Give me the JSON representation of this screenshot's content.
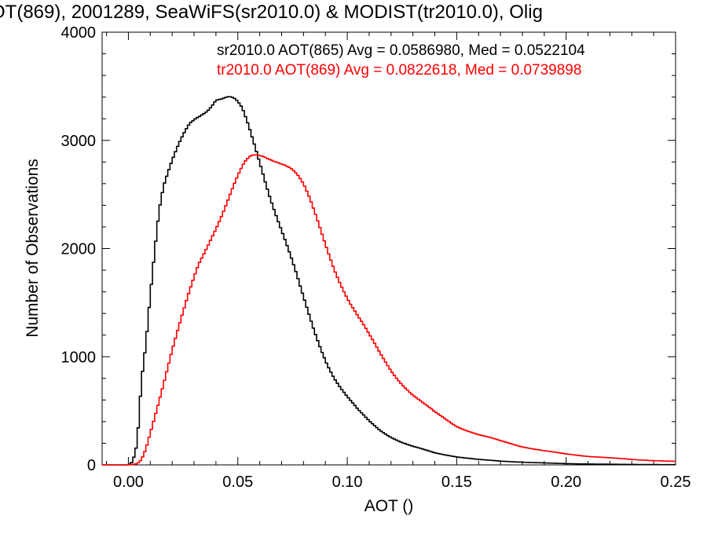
{
  "chart_data": {
    "type": "line",
    "title": "OT(869), 2001289, SeaWiFS(sr2010.0) & MODIST(tr2010.0), Olig",
    "xlabel": "AOT ()",
    "ylabel": "Number of Observations",
    "xlim": [
      -0.012,
      0.25
    ],
    "ylim": [
      0,
      4000
    ],
    "x_ticks": [
      0.0,
      0.05,
      0.1,
      0.15,
      0.2,
      0.25
    ],
    "x_tick_labels": [
      "0.00",
      "0.05",
      "0.10",
      "0.15",
      "0.20",
      "0.25"
    ],
    "y_ticks": [
      0,
      1000,
      2000,
      3000,
      4000
    ],
    "y_tick_labels": [
      "0",
      "1000",
      "2000",
      "3000",
      "4000"
    ],
    "grid": false,
    "legend_placement": "top-right",
    "series": [
      {
        "name": "sr2010.0",
        "legend": "sr2010.0 AOT(865) Avg = 0.0586980, Med = 0.0522104",
        "color": "#000000",
        "x": [
          -0.012,
          0.0,
          0.002,
          0.004,
          0.006,
          0.008,
          0.01,
          0.012,
          0.014,
          0.016,
          0.018,
          0.02,
          0.022,
          0.025,
          0.028,
          0.031,
          0.034,
          0.037,
          0.04,
          0.043,
          0.046,
          0.049,
          0.052,
          0.055,
          0.058,
          0.061,
          0.064,
          0.067,
          0.07,
          0.073,
          0.076,
          0.079,
          0.082,
          0.085,
          0.088,
          0.091,
          0.094,
          0.097,
          0.1,
          0.105,
          0.11,
          0.115,
          0.12,
          0.125,
          0.13,
          0.135,
          0.14,
          0.15,
          0.16,
          0.17,
          0.18,
          0.19,
          0.2,
          0.21,
          0.22,
          0.23,
          0.24,
          0.25
        ],
        "values": [
          0,
          0,
          30,
          200,
          800,
          1150,
          1600,
          2000,
          2350,
          2550,
          2650,
          2750,
          2850,
          3000,
          3150,
          3250,
          3320,
          3370,
          3420,
          3380,
          3350,
          3300,
          3230,
          3100,
          2950,
          2780,
          2580,
          2380,
          2180,
          1980,
          1780,
          1580,
          1400,
          1230,
          1080,
          940,
          820,
          720,
          630,
          500,
          400,
          320,
          260,
          210,
          170,
          140,
          110,
          75,
          50,
          35,
          25,
          18,
          12,
          8,
          6,
          4,
          3,
          2
        ]
      },
      {
        "name": "tr2010.0",
        "legend": "tr2010.0 AOT(869) Avg = 0.0822618, Med = 0.0739898",
        "color": "#ff0000",
        "x": [
          -0.012,
          0.0,
          0.004,
          0.006,
          0.008,
          0.01,
          0.012,
          0.014,
          0.016,
          0.018,
          0.02,
          0.023,
          0.026,
          0.029,
          0.032,
          0.035,
          0.038,
          0.041,
          0.044,
          0.047,
          0.05,
          0.053,
          0.056,
          0.059,
          0.062,
          0.065,
          0.068,
          0.071,
          0.074,
          0.077,
          0.08,
          0.083,
          0.086,
          0.089,
          0.092,
          0.095,
          0.098,
          0.101,
          0.105,
          0.11,
          0.115,
          0.12,
          0.125,
          0.13,
          0.135,
          0.14,
          0.145,
          0.15,
          0.16,
          0.17,
          0.18,
          0.19,
          0.2,
          0.21,
          0.22,
          0.23,
          0.24,
          0.25
        ],
        "values": [
          0,
          0,
          10,
          50,
          150,
          300,
          450,
          600,
          750,
          900,
          1050,
          1250,
          1450,
          1650,
          1850,
          2000,
          2150,
          2280,
          2400,
          2520,
          2630,
          2730,
          2800,
          2840,
          2870,
          2880,
          2870,
          2830,
          2760,
          2660,
          2540,
          2400,
          2250,
          2100,
          1950,
          1800,
          1660,
          1520,
          1360,
          1180,
          1020,
          880,
          760,
          650,
          560,
          480,
          420,
          360,
          280,
          220,
          170,
          130,
          100,
          80,
          65,
          50,
          40,
          32
        ]
      }
    ]
  }
}
